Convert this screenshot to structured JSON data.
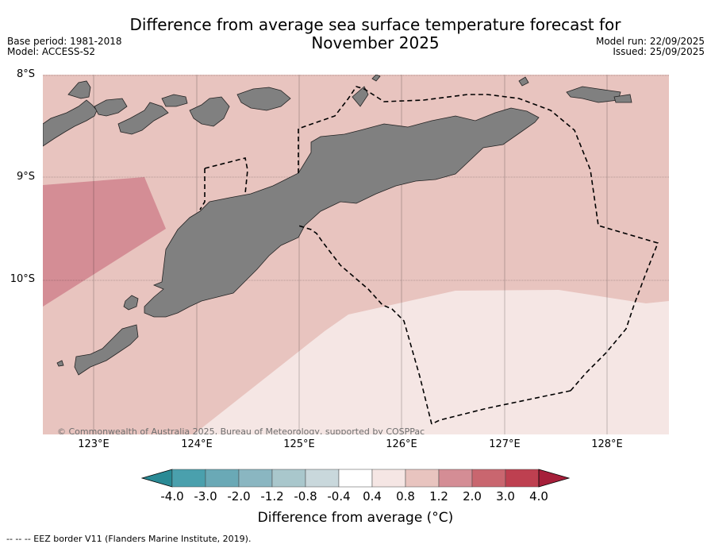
{
  "title_line1": "Difference from average sea surface temperature forecast for",
  "title_line2": "November 2025",
  "base_period": "Base period: 1981-2018",
  "model": "Model: ACCESS-S2",
  "model_run": "Model run: 22/09/2025",
  "issued": "Issued: 25/09/2025",
  "lat_labels": [
    "8°S",
    "9°S",
    "10°S"
  ],
  "lon_labels": [
    "123°E",
    "124°E",
    "125°E",
    "126°E",
    "127°E",
    "128°E"
  ],
  "copyright": "© Commonwealth of Australia 2025, Bureau of Meteorology, supported by COSPPac",
  "colorbar": {
    "ticks": [
      "-4.0",
      "-3.0",
      "-2.0",
      "-1.2",
      "-0.8",
      "-0.4",
      "0.4",
      "0.8",
      "1.2",
      "2.0",
      "3.0",
      "4.0"
    ],
    "colors": [
      "#2a8a95",
      "#4aa0ad",
      "#6aa9b6",
      "#8ab6c1",
      "#a9c7cc",
      "#c9d8dc",
      "#ffffff",
      "#f5e6e4",
      "#e8c4bf",
      "#d48d95",
      "#c9666f",
      "#be4050",
      "#a61f3a"
    ],
    "label": "Difference from average (°C)"
  },
  "legend_note": "--  --  -- EEZ border V11 (Flanders Marine Institute, 2019).",
  "colors": {
    "ocean_warm": "#e8c4bf",
    "ocean_hot": "#d48d95",
    "ocean_mild": "#f5e6e4",
    "land": "#808080"
  }
}
